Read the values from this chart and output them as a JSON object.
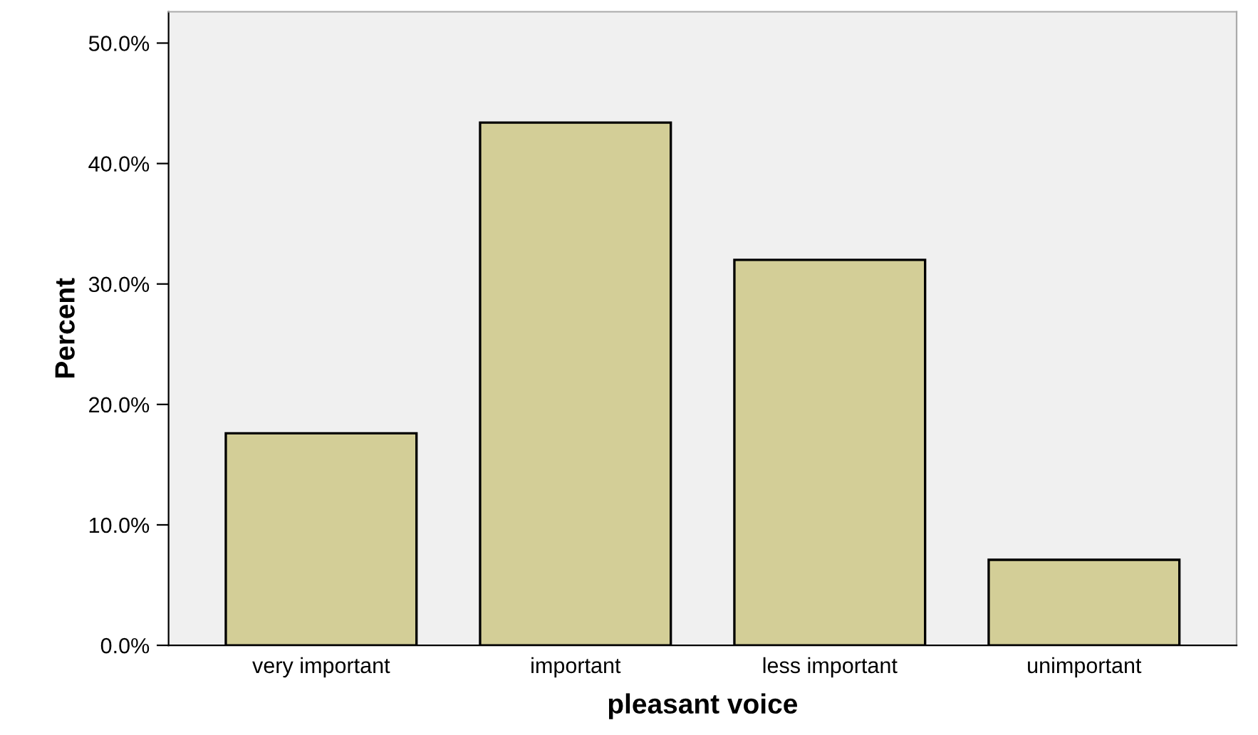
{
  "chart_data": {
    "type": "bar",
    "xlabel": "pleasant voice",
    "ylabel": "Percent",
    "categories": [
      "very important",
      "important",
      "less important",
      "unimportant"
    ],
    "values": [
      17.6,
      43.4,
      32.0,
      7.1
    ],
    "color": "#d3ce97",
    "ylim": [
      0,
      52.6
    ],
    "yticks": [
      {
        "value": 0,
        "label": "0.0%"
      },
      {
        "value": 10,
        "label": "10.0%"
      },
      {
        "value": 20,
        "label": "20.0%"
      },
      {
        "value": 30,
        "label": "30.0%"
      },
      {
        "value": 40,
        "label": "40.0%"
      },
      {
        "value": 50,
        "label": "50.0%"
      }
    ],
    "grid": false
  }
}
